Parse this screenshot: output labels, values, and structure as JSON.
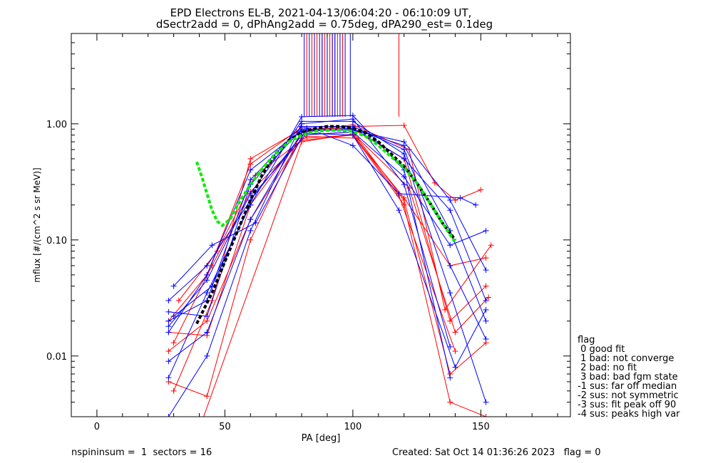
{
  "chart_data": {
    "type": "scatter",
    "title": "EPD Electrons EL-B, 2021-04-13/06:04:20 - 06:10:09 UT,",
    "subtitle": "dSectr2add = 0, dPhAng2add = 0.75deg, dPA290_est=   0.1deg",
    "xlabel": "PA [deg]",
    "ylabel": "mflux [#/(cm^2 s sr MeV)]",
    "xlim": [
      -10,
      185
    ],
    "ylim": [
      0.003,
      6
    ],
    "yscale": "log",
    "xticks": [
      "0",
      "50",
      "100",
      "150"
    ],
    "xtick_values": [
      0,
      50,
      100,
      150
    ],
    "yticks": [
      "0.01",
      "0.10",
      "1.00"
    ],
    "ytick_values": [
      0.01,
      0.1,
      1.0
    ],
    "grid": false,
    "colors": {
      "red": "#ff0000",
      "blue": "#0000ff",
      "black_fit": "#000000",
      "green_fit": "#00ee00"
    },
    "blue_profiles": [
      [
        [
          28,
          0.0065
        ],
        [
          43,
          0.035
        ],
        [
          60,
          0.2
        ],
        [
          80,
          1.15
        ],
        [
          100,
          1.18
        ],
        [
          120,
          0.4
        ],
        [
          138,
          0.0065
        ]
      ],
      [
        [
          28,
          0.003
        ],
        [
          43,
          0.01
        ],
        [
          60,
          0.12
        ],
        [
          80,
          1.0
        ],
        [
          100,
          1.1
        ],
        [
          120,
          0.3
        ],
        [
          138,
          0.012
        ]
      ],
      [
        [
          28,
          0.018
        ],
        [
          43,
          0.045
        ],
        [
          60,
          0.25
        ],
        [
          80,
          1.05
        ],
        [
          100,
          1.05
        ],
        [
          120,
          0.55
        ],
        [
          138,
          0.035
        ],
        [
          152,
          0.004
        ]
      ],
      [
        [
          28,
          0.02
        ],
        [
          43,
          0.03
        ],
        [
          60,
          0.33
        ],
        [
          80,
          0.95
        ],
        [
          100,
          0.95
        ],
        [
          120,
          0.6
        ],
        [
          138,
          0.06
        ],
        [
          152,
          0.014
        ]
      ],
      [
        [
          28,
          0.024
        ],
        [
          43,
          0.022
        ],
        [
          60,
          0.3
        ],
        [
          80,
          0.9
        ],
        [
          100,
          0.9
        ],
        [
          120,
          0.65
        ],
        [
          138,
          0.12
        ],
        [
          152,
          0.02
        ]
      ],
      [
        [
          28,
          0.009
        ],
        [
          43,
          0.016
        ],
        [
          60,
          0.15
        ],
        [
          80,
          0.85
        ],
        [
          100,
          0.92
        ],
        [
          120,
          0.5
        ],
        [
          138,
          0.18
        ],
        [
          152,
          0.03
        ]
      ],
      [
        [
          28,
          0.016
        ],
        [
          43,
          0.05
        ],
        [
          60,
          0.4
        ],
        [
          80,
          0.88
        ],
        [
          100,
          0.88
        ],
        [
          120,
          0.7
        ],
        [
          138,
          0.22
        ],
        [
          152,
          0.055
        ]
      ],
      [
        [
          28,
          0.03
        ],
        [
          43,
          0.06
        ],
        [
          60,
          0.22
        ],
        [
          80,
          0.8
        ],
        [
          100,
          0.85
        ],
        [
          120,
          0.35
        ],
        [
          138,
          0.09
        ],
        [
          152,
          0.12
        ]
      ],
      [
        [
          30,
          0.022
        ],
        [
          45,
          0.04
        ],
        [
          62,
          0.26
        ],
        [
          82,
          0.83
        ],
        [
          100,
          0.8
        ],
        [
          118,
          0.18
        ],
        [
          140,
          0.008
        ],
        [
          152,
          0.025
        ]
      ],
      [
        [
          30,
          0.04
        ],
        [
          45,
          0.09
        ],
        [
          62,
          0.14
        ],
        [
          82,
          0.92
        ],
        [
          100,
          0.65
        ],
        [
          118,
          0.25
        ],
        [
          142,
          0.23
        ],
        [
          148,
          0.2
        ]
      ]
    ],
    "red_profiles": [
      [
        [
          28,
          0.011
        ],
        [
          43,
          0.02
        ],
        [
          60,
          0.15
        ],
        [
          80,
          0.75
        ],
        [
          100,
          0.8
        ],
        [
          120,
          0.2
        ],
        [
          138,
          0.004
        ],
        [
          152,
          0.003
        ]
      ],
      [
        [
          28,
          0.016
        ],
        [
          43,
          0.015
        ],
        [
          60,
          0.2
        ],
        [
          80,
          0.8
        ],
        [
          100,
          0.85
        ],
        [
          120,
          0.22
        ],
        [
          138,
          0.007
        ],
        [
          152,
          0.013
        ]
      ],
      [
        [
          28,
          0.006
        ],
        [
          43,
          0.0045
        ],
        [
          60,
          0.1
        ],
        [
          80,
          0.85
        ],
        [
          100,
          0.95
        ],
        [
          120,
          0.97
        ],
        [
          132,
          0.31
        ],
        [
          140,
          0.22
        ],
        [
          150,
          0.27
        ]
      ],
      [
        [
          28,
          0.02
        ],
        [
          43,
          0.05
        ],
        [
          60,
          0.45
        ],
        [
          80,
          0.93
        ],
        [
          100,
          0.9
        ],
        [
          120,
          0.5
        ],
        [
          138,
          0.02
        ],
        [
          152,
          0.04
        ]
      ],
      [
        [
          30,
          0.005
        ],
        [
          45,
          0.03
        ],
        [
          60,
          0.5
        ],
        [
          78,
          0.85
        ],
        [
          100,
          0.98
        ],
        [
          122,
          0.6
        ],
        [
          136,
          0.025
        ],
        [
          154,
          0.09
        ]
      ],
      [
        [
          32,
          0.03
        ],
        [
          47,
          0.08
        ],
        [
          62,
          0.36
        ],
        [
          82,
          0.78
        ],
        [
          102,
          0.75
        ],
        [
          122,
          0.28
        ],
        [
          140,
          0.016
        ],
        [
          153,
          0.032
        ]
      ],
      [
        [
          30,
          0.013
        ],
        [
          45,
          0.06
        ],
        [
          60,
          0.26
        ],
        [
          80,
          0.72
        ],
        [
          100,
          0.8
        ],
        [
          120,
          0.23
        ],
        [
          138,
          0.06
        ],
        [
          152,
          0.07
        ]
      ],
      [
        [
          34,
          0.001
        ],
        [
          80,
          0.7
        ],
        [
          100,
          0.82
        ],
        [
          118,
          0.24
        ],
        [
          140,
          0.011
        ]
      ]
    ],
    "red_spikes_x": [
      82,
      84,
      86,
      88,
      89,
      90,
      91,
      92,
      93,
      94,
      96,
      118
    ],
    "blue_spikes_x": [
      81,
      83,
      85,
      87,
      88,
      90,
      92,
      93,
      95,
      97,
      99
    ],
    "black_fit": [
      [
        39,
        0.019
      ],
      [
        45,
        0.035
      ],
      [
        50,
        0.065
      ],
      [
        55,
        0.12
      ],
      [
        60,
        0.22
      ],
      [
        65,
        0.38
      ],
      [
        70,
        0.56
      ],
      [
        75,
        0.72
      ],
      [
        80,
        0.84
      ],
      [
        85,
        0.91
      ],
      [
        90,
        0.95
      ],
      [
        95,
        0.95
      ],
      [
        100,
        0.92
      ],
      [
        105,
        0.84
      ],
      [
        110,
        0.7
      ],
      [
        115,
        0.55
      ],
      [
        120,
        0.43
      ],
      [
        125,
        0.31
      ],
      [
        130,
        0.21
      ],
      [
        135,
        0.14
      ],
      [
        140,
        0.1
      ]
    ],
    "green_fit": [
      [
        39,
        0.47
      ],
      [
        41,
        0.35
      ],
      [
        43,
        0.25
      ],
      [
        45,
        0.18
      ],
      [
        47,
        0.145
      ],
      [
        49,
        0.133
      ],
      [
        52,
        0.15
      ],
      [
        55,
        0.2
      ],
      [
        60,
        0.3
      ],
      [
        65,
        0.42
      ],
      [
        70,
        0.56
      ],
      [
        75,
        0.7
      ],
      [
        80,
        0.8
      ],
      [
        85,
        0.86
      ],
      [
        90,
        0.88
      ],
      [
        95,
        0.88
      ],
      [
        100,
        0.86
      ],
      [
        105,
        0.78
      ],
      [
        110,
        0.65
      ],
      [
        115,
        0.52
      ],
      [
        120,
        0.42
      ],
      [
        125,
        0.31
      ],
      [
        130,
        0.21
      ],
      [
        135,
        0.14
      ],
      [
        140,
        0.095
      ]
    ]
  },
  "legend": {
    "title": "flag",
    "items": [
      " 0 good fit",
      " 1 bad: not converge",
      " 2 bad: no fit",
      " 3 bad: bad fgm state",
      "-1 sus: far off median",
      "-2 sus: not symmetric",
      "-3 sus: fit peak off 90",
      "-4 sus: peaks high var"
    ]
  },
  "footer": {
    "left": "nspininsum =  1  sectors = 16",
    "right": "Created: Sat Oct 14 01:36:26 2023   flag = 0"
  }
}
